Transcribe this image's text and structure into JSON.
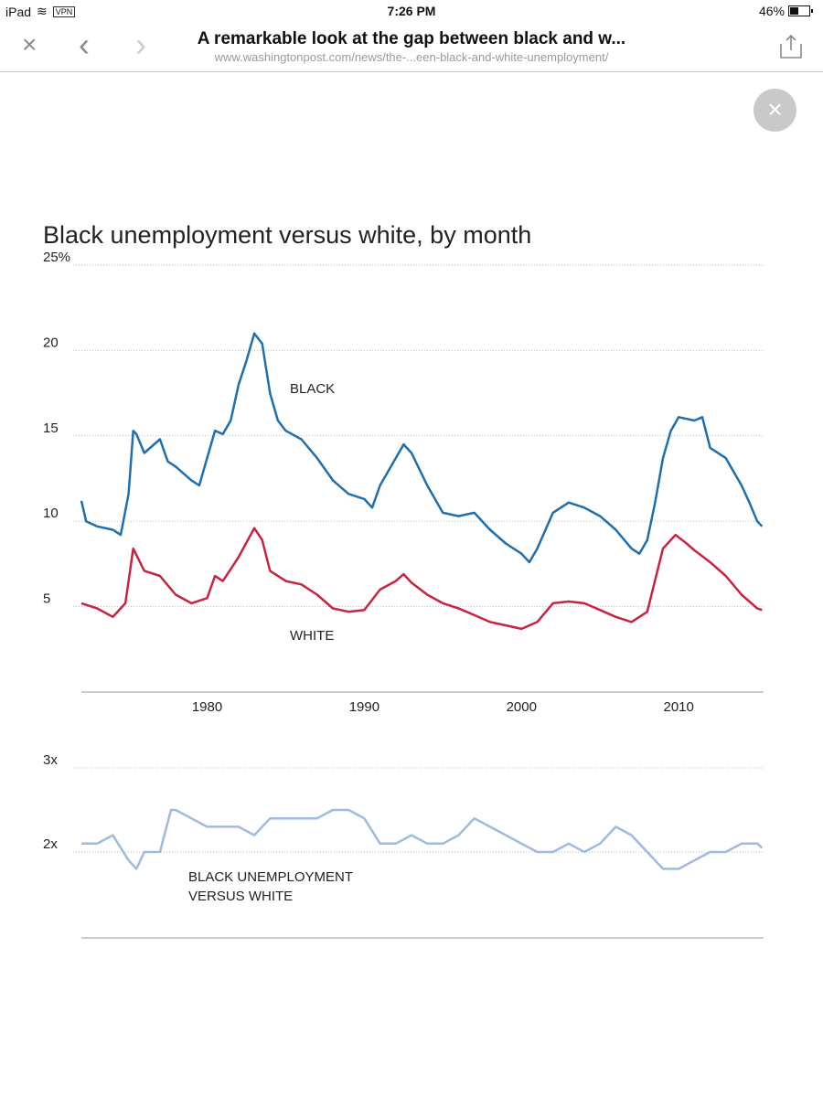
{
  "status_bar": {
    "device": "iPad",
    "vpn": "VPN",
    "time": "7:26 PM",
    "battery": "46%"
  },
  "browser": {
    "title": "A remarkable look at the gap between black and w...",
    "url": "www.washingtonpost.com/news/the-...een-black-and-white-unemployment/"
  },
  "icons": {
    "close": "×",
    "back": "‹",
    "forward": "›",
    "share": "share-icon",
    "overlay_close": "×"
  },
  "chart_data": [
    {
      "type": "line",
      "title": "Black unemployment versus white, by month",
      "ylabel": "",
      "xlabel": "",
      "xlim": [
        1972,
        2015.4
      ],
      "ylim": [
        0,
        25
      ],
      "yticks": [
        {
          "v": 25,
          "label": "25%"
        },
        {
          "v": 20,
          "label": "20"
        },
        {
          "v": 15,
          "label": "15"
        },
        {
          "v": 10,
          "label": "10"
        },
        {
          "v": 5,
          "label": "5"
        }
      ],
      "xticks": [
        {
          "v": 1980,
          "label": "1980"
        },
        {
          "v": 1990,
          "label": "1990"
        },
        {
          "v": 2000,
          "label": "2000"
        },
        {
          "v": 2010,
          "label": "2010"
        }
      ],
      "grid": true,
      "series": [
        {
          "name": "BLACK",
          "color": "#1f6fae",
          "x": [
            1972,
            1972.3,
            1973,
            1974,
            1974.5,
            1975,
            1975.3,
            1975.5,
            1976,
            1977,
            1977.5,
            1978,
            1979,
            1979.5,
            1980,
            1980.5,
            1981,
            1981.5,
            1982,
            1982.5,
            1983,
            1983.5,
            1984,
            1984.5,
            1985,
            1986,
            1987,
            1988,
            1989,
            1990,
            1990.5,
            1991,
            1992,
            1992.5,
            1993,
            1994,
            1995,
            1996,
            1997,
            1998,
            1999,
            2000,
            2000.5,
            2001,
            2002,
            2003,
            2004,
            2005,
            2006,
            2007,
            2007.5,
            2008,
            2008.5,
            2009,
            2009.5,
            2010,
            2011,
            2011.5,
            2012,
            2013,
            2014,
            2014.5,
            2015,
            2015.3
          ],
          "y": [
            11.2,
            10.0,
            9.7,
            9.5,
            9.2,
            11.6,
            15.3,
            15.1,
            14.0,
            14.8,
            13.5,
            13.2,
            12.4,
            12.1,
            13.7,
            15.3,
            15.1,
            15.9,
            18.0,
            19.4,
            21.0,
            20.4,
            17.5,
            15.9,
            15.3,
            14.8,
            13.7,
            12.4,
            11.6,
            11.3,
            10.8,
            12.1,
            13.7,
            14.5,
            14.0,
            12.1,
            10.5,
            10.3,
            10.5,
            9.5,
            8.7,
            8.1,
            7.6,
            8.4,
            10.5,
            11.1,
            10.8,
            10.3,
            9.5,
            8.4,
            8.1,
            8.9,
            11.1,
            13.7,
            15.3,
            16.1,
            15.9,
            16.1,
            14.3,
            13.7,
            12.1,
            11.1,
            10.0,
            9.7
          ]
        },
        {
          "name": "WHITE",
          "color": "#c8243f",
          "x": [
            1972,
            1973,
            1974,
            1974.8,
            1975.3,
            1976,
            1977,
            1978,
            1979,
            1980,
            1980.5,
            1981,
            1982,
            1983,
            1983.5,
            1984,
            1985,
            1986,
            1987,
            1988,
            1989,
            1990,
            1991,
            1992,
            1992.5,
            1993,
            1994,
            1995,
            1996,
            1997,
            1998,
            1999,
            2000,
            2001,
            2002,
            2003,
            2004,
            2005,
            2006,
            2007,
            2008,
            2009,
            2009.8,
            2010.5,
            2011,
            2012,
            2013,
            2014,
            2015,
            2015.3
          ],
          "y": [
            5.2,
            4.9,
            4.4,
            5.2,
            8.4,
            7.1,
            6.8,
            5.7,
            5.2,
            5.5,
            6.8,
            6.5,
            7.9,
            9.6,
            8.9,
            7.1,
            6.5,
            6.3,
            5.7,
            4.9,
            4.7,
            4.8,
            6.0,
            6.5,
            6.9,
            6.4,
            5.7,
            5.2,
            4.9,
            4.5,
            4.1,
            3.9,
            3.7,
            4.1,
            5.2,
            5.3,
            5.2,
            4.8,
            4.4,
            4.1,
            4.7,
            8.4,
            9.2,
            8.7,
            8.3,
            7.6,
            6.8,
            5.7,
            4.9,
            4.8
          ]
        }
      ]
    },
    {
      "type": "line",
      "title": "",
      "ylim": [
        1,
        3
      ],
      "xlim": [
        1972,
        2015.4
      ],
      "yticks": [
        {
          "v": 3,
          "label": "3x"
        },
        {
          "v": 2,
          "label": "2x"
        }
      ],
      "series": [
        {
          "name": "BLACK UNEMPLOYMENT VERSUS WHITE",
          "label_lines": [
            "BLACK UNEMPLOYMENT",
            "VERSUS WHITE"
          ],
          "color": "#9dbbe0",
          "x": [
            1972,
            1973,
            1974,
            1975,
            1975.5,
            1976,
            1977,
            1977.7,
            1978,
            1979,
            1980,
            1981,
            1982,
            1983,
            1984,
            1985,
            1986,
            1987,
            1988,
            1989,
            1990,
            1991,
            1992,
            1993,
            1994,
            1995,
            1996,
            1997,
            1998,
            1999,
            2000,
            2001,
            2002,
            2003,
            2004,
            2005,
            2006,
            2007,
            2008,
            2009,
            2010,
            2011,
            2012,
            2013,
            2014,
            2015,
            2015.3
          ],
          "y": [
            2.1,
            2.1,
            2.2,
            1.9,
            1.8,
            2.0,
            2.0,
            2.5,
            2.5,
            2.4,
            2.3,
            2.3,
            2.3,
            2.2,
            2.4,
            2.4,
            2.4,
            2.4,
            2.5,
            2.5,
            2.4,
            2.1,
            2.1,
            2.2,
            2.1,
            2.1,
            2.2,
            2.4,
            2.3,
            2.2,
            2.1,
            2.0,
            2.0,
            2.1,
            2.0,
            2.1,
            2.3,
            2.2,
            2.0,
            1.8,
            1.8,
            1.9,
            2.0,
            2.0,
            2.1,
            2.1,
            2.05
          ]
        }
      ]
    }
  ]
}
